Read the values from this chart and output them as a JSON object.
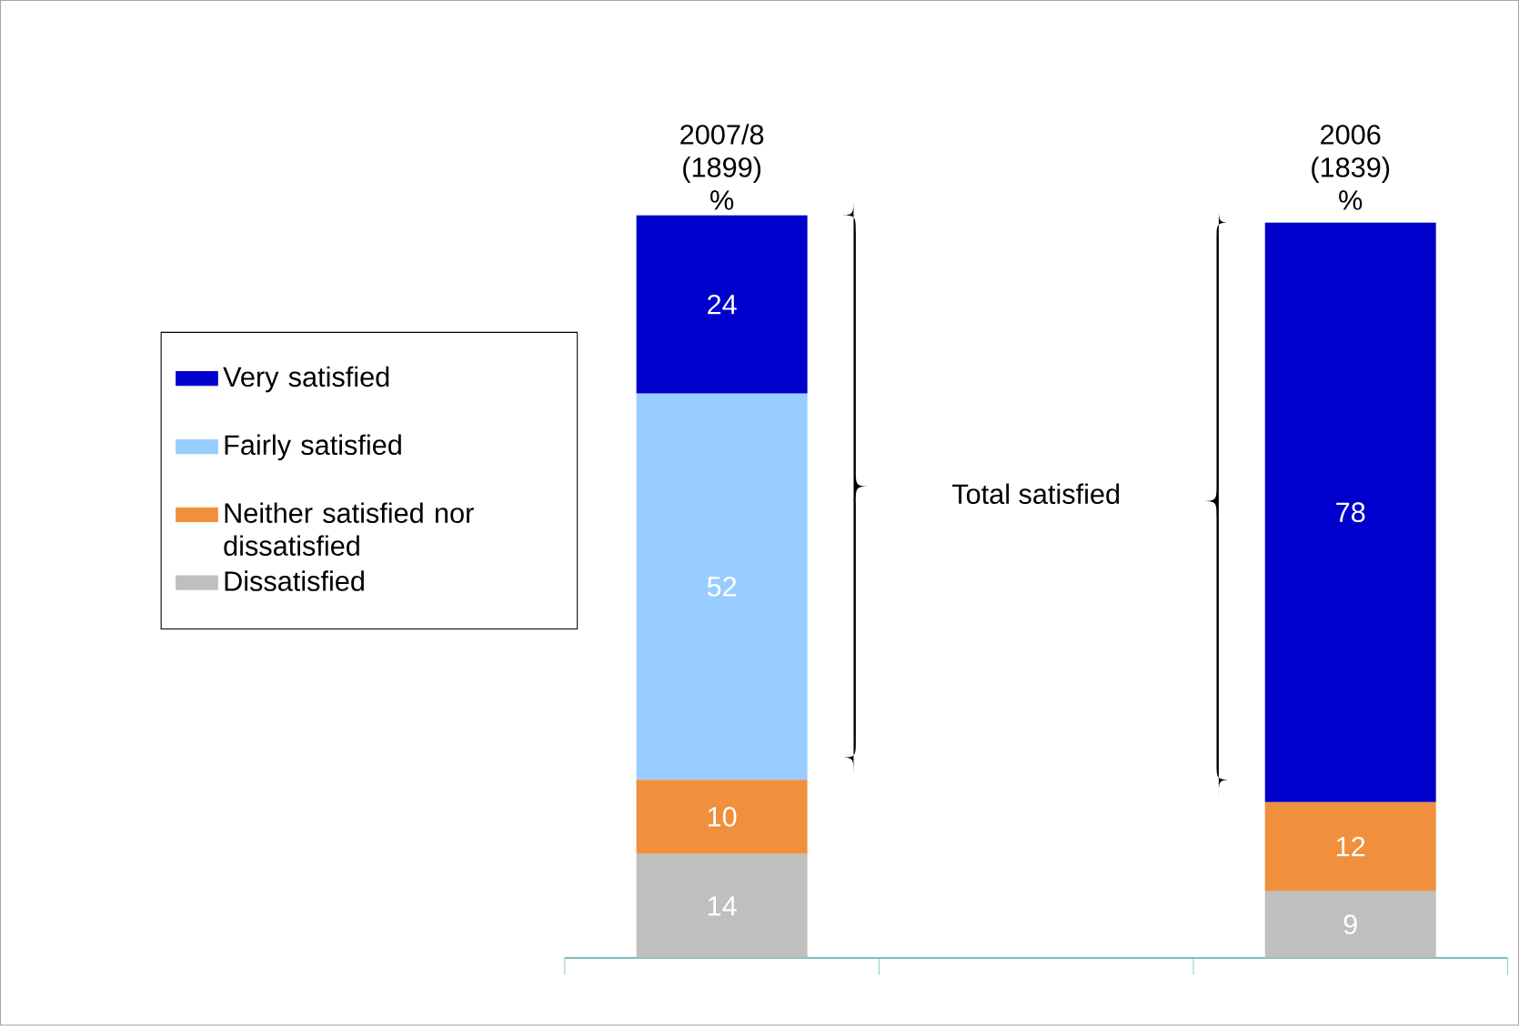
{
  "chart_data": {
    "type": "bar",
    "stacked": true,
    "categories": [
      "2007/8 (1899) %",
      "2006 (1839) %"
    ],
    "series": [
      {
        "name": "Dissatisfied",
        "color": "#bfbfbf",
        "values": [
          14,
          9
        ]
      },
      {
        "name": "Neither satisfied nor dissatisfied",
        "color": "#f0903c",
        "values": [
          10,
          12
        ]
      },
      {
        "name": "Fairly satisfied",
        "color": "#99ccff",
        "values": [
          52,
          null
        ]
      },
      {
        "name": "Very satisfied",
        "color": "#0000cc",
        "values": [
          24,
          78
        ]
      }
    ],
    "data_labels": true,
    "legend": "left",
    "annotations": [
      "Total satisfied"
    ]
  }
}
